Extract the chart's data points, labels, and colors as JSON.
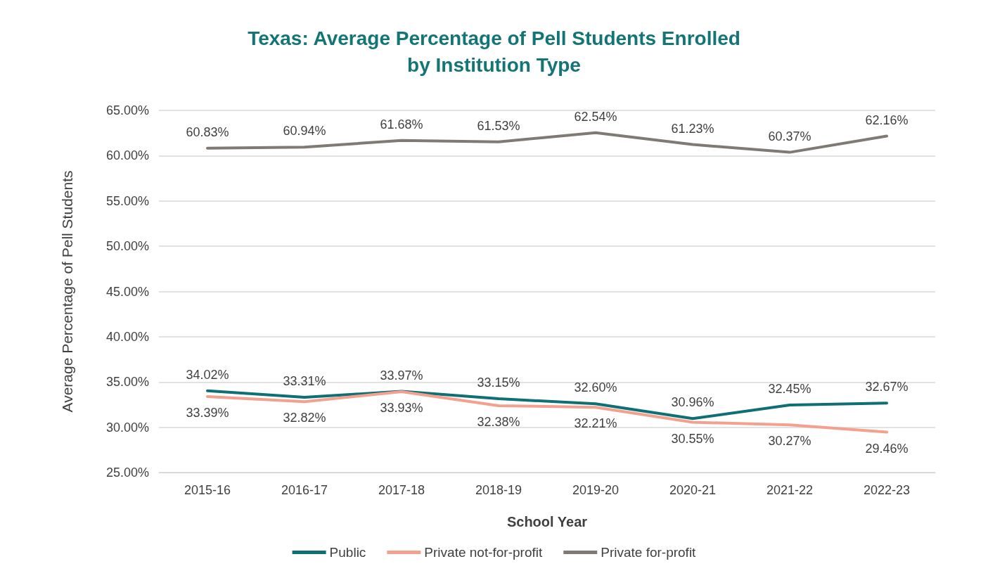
{
  "chart_data": {
    "type": "line",
    "title": "Texas: Average Percentage of Pell Students Enrolled\nby Institution Type",
    "xlabel": "School Year",
    "ylabel": "Average Percentage of Pell Students",
    "categories": [
      "2015-16",
      "2016-17",
      "2017-18",
      "2018-19",
      "2019-20",
      "2020-21",
      "2021-22",
      "2022-23"
    ],
    "series": [
      {
        "name": "Public",
        "color": "#0e6f74",
        "values": [
          34.02,
          33.31,
          33.97,
          33.15,
          32.6,
          30.96,
          32.45,
          32.67
        ],
        "value_labels": [
          "34.02%",
          "33.31%",
          "33.97%",
          "33.15%",
          "32.60%",
          "30.96%",
          "32.45%",
          "32.67%"
        ]
      },
      {
        "name": "Private not-for-profit",
        "color": "#f4a08e",
        "values": [
          33.39,
          32.82,
          33.93,
          32.38,
          32.21,
          30.55,
          30.27,
          29.46
        ],
        "value_labels": [
          "33.39%",
          "32.82%",
          "33.93%",
          "32.38%",
          "32.21%",
          "30.55%",
          "30.27%",
          "29.46%"
        ]
      },
      {
        "name": "Private for-profit",
        "color": "#7f7a73",
        "values": [
          60.83,
          60.94,
          61.68,
          61.53,
          62.54,
          61.23,
          60.37,
          62.16
        ],
        "value_labels": [
          "60.83%",
          "60.94%",
          "61.68%",
          "61.53%",
          "62.54%",
          "61.23%",
          "60.37%",
          "62.16%"
        ]
      }
    ],
    "ylim": [
      25,
      65
    ],
    "yticks": [
      {
        "value": 25,
        "label": "25.00%"
      },
      {
        "value": 30,
        "label": "30.00%"
      },
      {
        "value": 35,
        "label": "35.00%"
      },
      {
        "value": 40,
        "label": "40.00%"
      },
      {
        "value": 45,
        "label": "45.00%"
      },
      {
        "value": 50,
        "label": "50.00%"
      },
      {
        "value": 55,
        "label": "55.00%"
      },
      {
        "value": 60,
        "label": "60.00%"
      },
      {
        "value": 65,
        "label": "65.00%"
      }
    ],
    "grid": "y",
    "legend": "bottom",
    "marker": "none",
    "line_style": "solid"
  }
}
